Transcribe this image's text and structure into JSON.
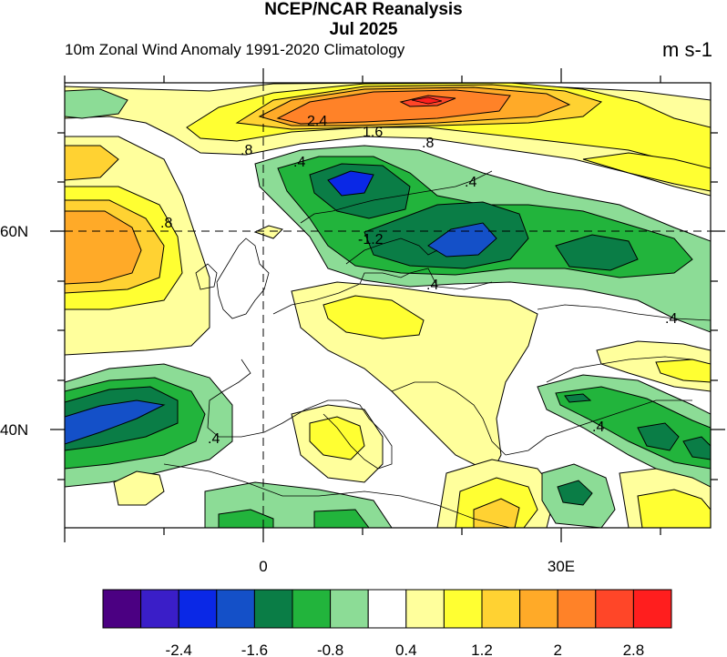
{
  "title": "NCEP/NCAR Reanalysis",
  "subtitle_date": "Jul 2025",
  "variable_label": "10m Zonal Wind Anomaly  1991-2020 Climatology",
  "units": "m s-1",
  "axes": {
    "x_ticks": [
      "0",
      "30E"
    ],
    "y_ticks": [
      "60N",
      "40N"
    ]
  },
  "contour_labels": [
    "2.4",
    "1.6",
    ".8",
    ".8",
    ".4",
    ".4",
    ".8",
    "-1.2",
    ".4",
    ".4",
    ".4",
    ".4"
  ],
  "colorbar": {
    "colors": [
      "#4b0082",
      "#3a1ec8",
      "#0a28e6",
      "#1450c8",
      "#0a7d46",
      "#22b43c",
      "#8cdc96",
      "#ffffff",
      "#ffff9c",
      "#ffff32",
      "#ffd232",
      "#ffaa28",
      "#ff8228",
      "#ff4628",
      "#ff1e1e"
    ],
    "tick_labels": [
      "-2.4",
      "-1.6",
      "-0.8",
      "0.4",
      "1.2",
      "2",
      "2.8"
    ]
  },
  "chart_data": {
    "type": "heatmap",
    "title": "NCEP/NCAR Reanalysis",
    "subtitle": "Jul 2025",
    "variable": "10m Zonal Wind Anomaly  1991-2020 Climatology",
    "units": "m s-1",
    "lon_ticks": [
      "0",
      "30E"
    ],
    "lat_ticks": [
      "60N",
      "40N"
    ],
    "colorbar_levels": [
      -2.8,
      -2.4,
      -2.0,
      -1.6,
      -1.2,
      -0.8,
      -0.4,
      0.4,
      0.8,
      1.2,
      1.6,
      2.0,
      2.4,
      2.8
    ]
  }
}
